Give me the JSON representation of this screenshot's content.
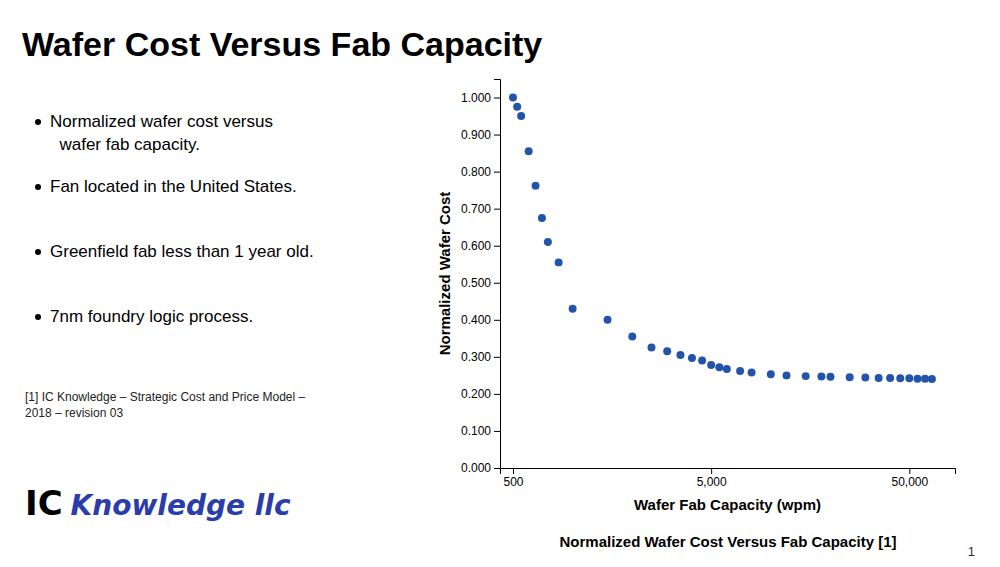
{
  "title": "Wafer Cost Versus Fab Capacity",
  "bullet_points": [
    "Normalized wafer cost versus\n  wafer fab capacity.",
    "Fan located in the United States.",
    "Greenfield fab less than 1 year old.",
    "7nm foundry logic process."
  ],
  "footnote": "[1] IC Knowledge – Strategic Cost and Price Model –\n2018 – revision 03",
  "logo": [
    {
      "text": "IC",
      "color": "#000000"
    },
    {
      "text": "Knowledge llc",
      "color": "#2B3DAA"
    }
  ],
  "page_number": "1",
  "chart_data": {
    "type": "scatter",
    "caption": "Normalized Wafer Cost Versus Fab Capacity [1]",
    "xlabel": "Wafer Fab Capacity (wpm)",
    "ylabel": "Normalized Wafer Cost",
    "x": [
      500,
      525,
      550,
      600,
      650,
      700,
      750,
      850,
      1000,
      1500,
      2000,
      2500,
      3000,
      3500,
      4000,
      4500,
      5000,
      5500,
      6000,
      7000,
      8000,
      10000,
      12000,
      15000,
      18000,
      20000,
      25000,
      30000,
      35000,
      40000,
      45000,
      50000,
      55000,
      60000,
      65000
    ],
    "values": [
      1.0,
      0.975,
      0.95,
      0.855,
      0.762,
      0.675,
      0.61,
      0.555,
      0.43,
      0.4,
      0.355,
      0.325,
      0.315,
      0.305,
      0.297,
      0.29,
      0.278,
      0.272,
      0.267,
      0.262,
      0.258,
      0.253,
      0.25,
      0.248,
      0.247,
      0.246,
      0.245,
      0.244,
      0.243,
      0.243,
      0.242,
      0.242,
      0.241,
      0.241,
      0.24
    ],
    "color": "#2255AA",
    "marker": "circle",
    "log": "x",
    "xlim": [
      430,
      85000
    ],
    "xticks": [
      500,
      {
        "value": 5000,
        "label": "5,000"
      },
      {
        "value": 50000,
        "label": "50,000"
      }
    ],
    "ylim": [
      0.0,
      1.05
    ],
    "yticks": [
      {
        "value": 0.0,
        "label": "0.000"
      },
      {
        "value": 0.1,
        "label": "0.100"
      },
      {
        "value": 0.2,
        "label": "0.200"
      },
      {
        "value": 0.3,
        "label": "0.300"
      },
      {
        "value": 0.4,
        "label": "0.400"
      },
      {
        "value": 0.5,
        "label": "0.500"
      },
      {
        "value": 0.6,
        "label": "0.600"
      },
      {
        "value": 0.7,
        "label": "0.700"
      },
      {
        "value": 0.8,
        "label": "0.800"
      },
      {
        "value": 0.9,
        "label": "0.900"
      },
      {
        "value": 1.0,
        "label": "1.000"
      }
    ],
    "grid": false
  }
}
